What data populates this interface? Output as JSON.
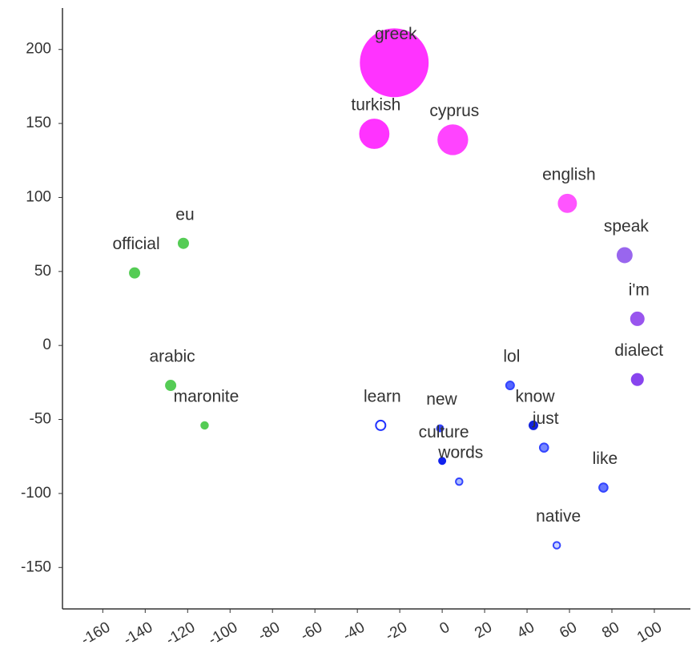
{
  "chart_data": {
    "type": "scatter",
    "labels": [
      "greek",
      "turkish",
      "cyprus",
      "english",
      "speak",
      "i'm",
      "dialect",
      "eu",
      "official",
      "arabic",
      "maronite",
      "learn",
      "new",
      "culture",
      "words",
      "lol",
      "know",
      "just",
      "like",
      "native"
    ],
    "x": [
      -22.6,
      -32,
      5,
      59,
      86,
      92,
      92,
      -122,
      -145,
      -128,
      -112,
      -29,
      -1,
      0,
      8,
      32,
      43,
      48,
      76,
      54
    ],
    "y": [
      191,
      143,
      139,
      96,
      61,
      18,
      -23,
      69,
      49,
      -27,
      -54,
      -54,
      -56,
      -78,
      -92,
      -27,
      -54,
      -69,
      -96,
      -135
    ],
    "sizes": [
      1760,
      320,
      330,
      120,
      80,
      64,
      50,
      36,
      36,
      36,
      18,
      36,
      16,
      16,
      18,
      25,
      25,
      28,
      28,
      18
    ],
    "colors": [
      "#ff33ff",
      "#ff33ff",
      "#ff44ff",
      "#ff55ff",
      "#9966ee",
      "#9955ee",
      "#8844ee",
      "#55cc55",
      "#55cc55",
      "#55cc55",
      "#55cc55",
      "#ffffff",
      "#3344ff",
      "#1122ee",
      "#aabbff",
      "#5566ff",
      "#1122dd",
      "#7788ff",
      "#6677ff",
      "#ccd4ff"
    ],
    "edge_colors": [
      "#ff33ff",
      "#ff33ff",
      "#ff44ff",
      "#ff55ff",
      "#9966ee",
      "#9955ee",
      "#8844ee",
      "#55cc55",
      "#55cc55",
      "#55cc55",
      "#55cc55",
      "#2233ff",
      "#3344ff",
      "#1122ee",
      "#3344ff",
      "#3344ff",
      "#1122dd",
      "#3344ff",
      "#3344ff",
      "#3344ff"
    ],
    "xlim": [
      -179,
      117
    ],
    "xticks": [
      -160,
      -140,
      -120,
      -100,
      -80,
      -60,
      -40,
      -20,
      0,
      20,
      40,
      60,
      80,
      100
    ],
    "ylim": [
      -178,
      228
    ],
    "yticks": [
      -150,
      -100,
      -50,
      0,
      50,
      100,
      150,
      200
    ]
  }
}
